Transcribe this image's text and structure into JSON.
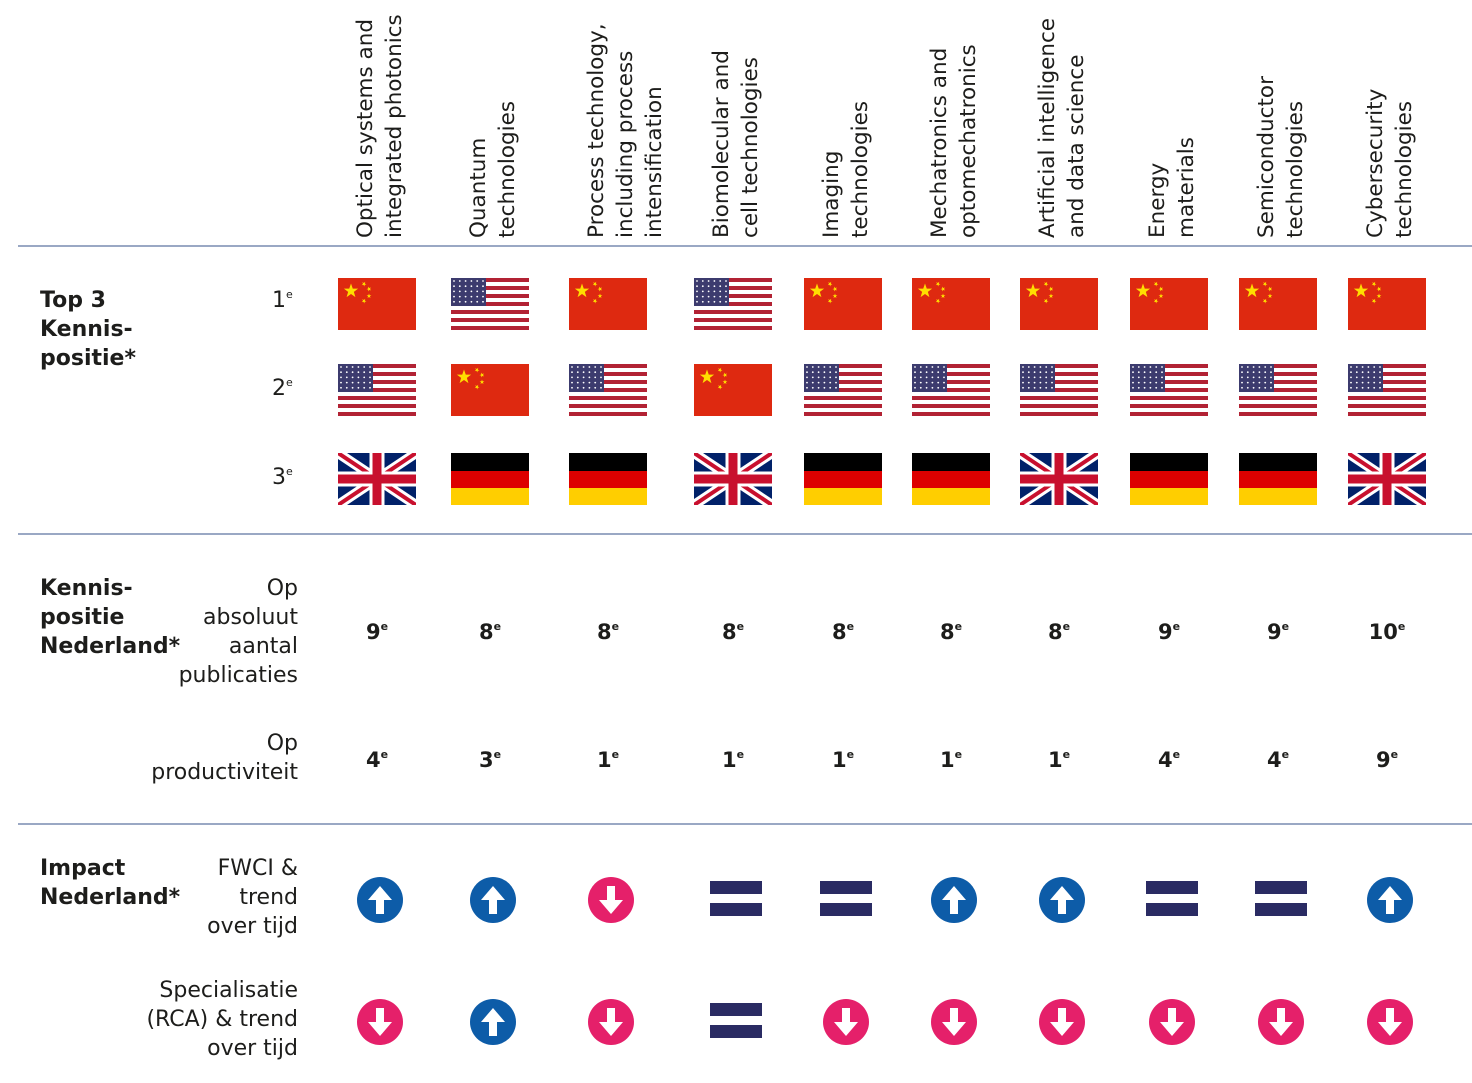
{
  "columns": [
    {
      "lines": [
        "Optical systems and",
        "integrated photonics"
      ]
    },
    {
      "lines": [
        "Quantum",
        "technologies"
      ]
    },
    {
      "lines": [
        "Process technology,",
        "including process",
        "intensification"
      ]
    },
    {
      "lines": [
        "Biomolecular and",
        "cell technologies"
      ]
    },
    {
      "lines": [
        "Imaging",
        "technologies"
      ]
    },
    {
      "lines": [
        "Mechatronics and",
        "optomechatronics"
      ]
    },
    {
      "lines": [
        "Artificial intelligence",
        "and data science"
      ]
    },
    {
      "lines": [
        "Energy",
        "materials"
      ]
    },
    {
      "lines": [
        "Semiconductor",
        "technologies"
      ]
    },
    {
      "lines": [
        "Cybersecurity",
        "technologies"
      ]
    }
  ],
  "top3": {
    "title_lines": [
      "Top 3",
      "Kennis-",
      "positie*"
    ],
    "ranks": [
      {
        "num": "1",
        "sup": "e",
        "flags": [
          "china",
          "usa",
          "china",
          "usa",
          "china",
          "china",
          "china",
          "china",
          "china",
          "china"
        ]
      },
      {
        "num": "2",
        "sup": "e",
        "flags": [
          "usa",
          "china",
          "usa",
          "china",
          "usa",
          "usa",
          "usa",
          "usa",
          "usa",
          "usa"
        ]
      },
      {
        "num": "3",
        "sup": "e",
        "flags": [
          "uk",
          "germany",
          "germany",
          "uk",
          "germany",
          "germany",
          "uk",
          "germany",
          "germany",
          "uk"
        ]
      }
    ]
  },
  "kennis": {
    "title_lines": [
      "Kennis-",
      "positie",
      "Nederland*"
    ],
    "rows": [
      {
        "label_lines": [
          "Op",
          "absoluut",
          "aantal",
          "publicaties"
        ],
        "values": [
          "9",
          "8",
          "8",
          "8",
          "8",
          "8",
          "8",
          "9",
          "9",
          "10"
        ],
        "sup": "e"
      },
      {
        "label_lines": [
          "Op",
          "productiviteit"
        ],
        "values": [
          "4",
          "3",
          "1",
          "1",
          "1",
          "1",
          "1",
          "4",
          "4",
          "9"
        ],
        "sup": "e"
      }
    ]
  },
  "impact": {
    "title_lines": [
      "Impact",
      "Nederland*"
    ],
    "rows": [
      {
        "label_lines": [
          "FWCI &",
          "trend",
          "over tijd"
        ],
        "trends": [
          "up",
          "up",
          "down",
          "equal",
          "equal",
          "up",
          "up",
          "equal",
          "equal",
          "up"
        ]
      },
      {
        "label_lines": [
          "Specialisatie",
          "(RCA) & trend",
          "over tijd"
        ],
        "trends": [
          "down",
          "up",
          "down",
          "equal",
          "down",
          "down",
          "down",
          "down",
          "down",
          "down"
        ]
      }
    ]
  },
  "colors": {
    "up": "#0d5ca8",
    "down": "#e5206a",
    "equal": "#2a2b63",
    "rule": "#9aa8c4"
  }
}
